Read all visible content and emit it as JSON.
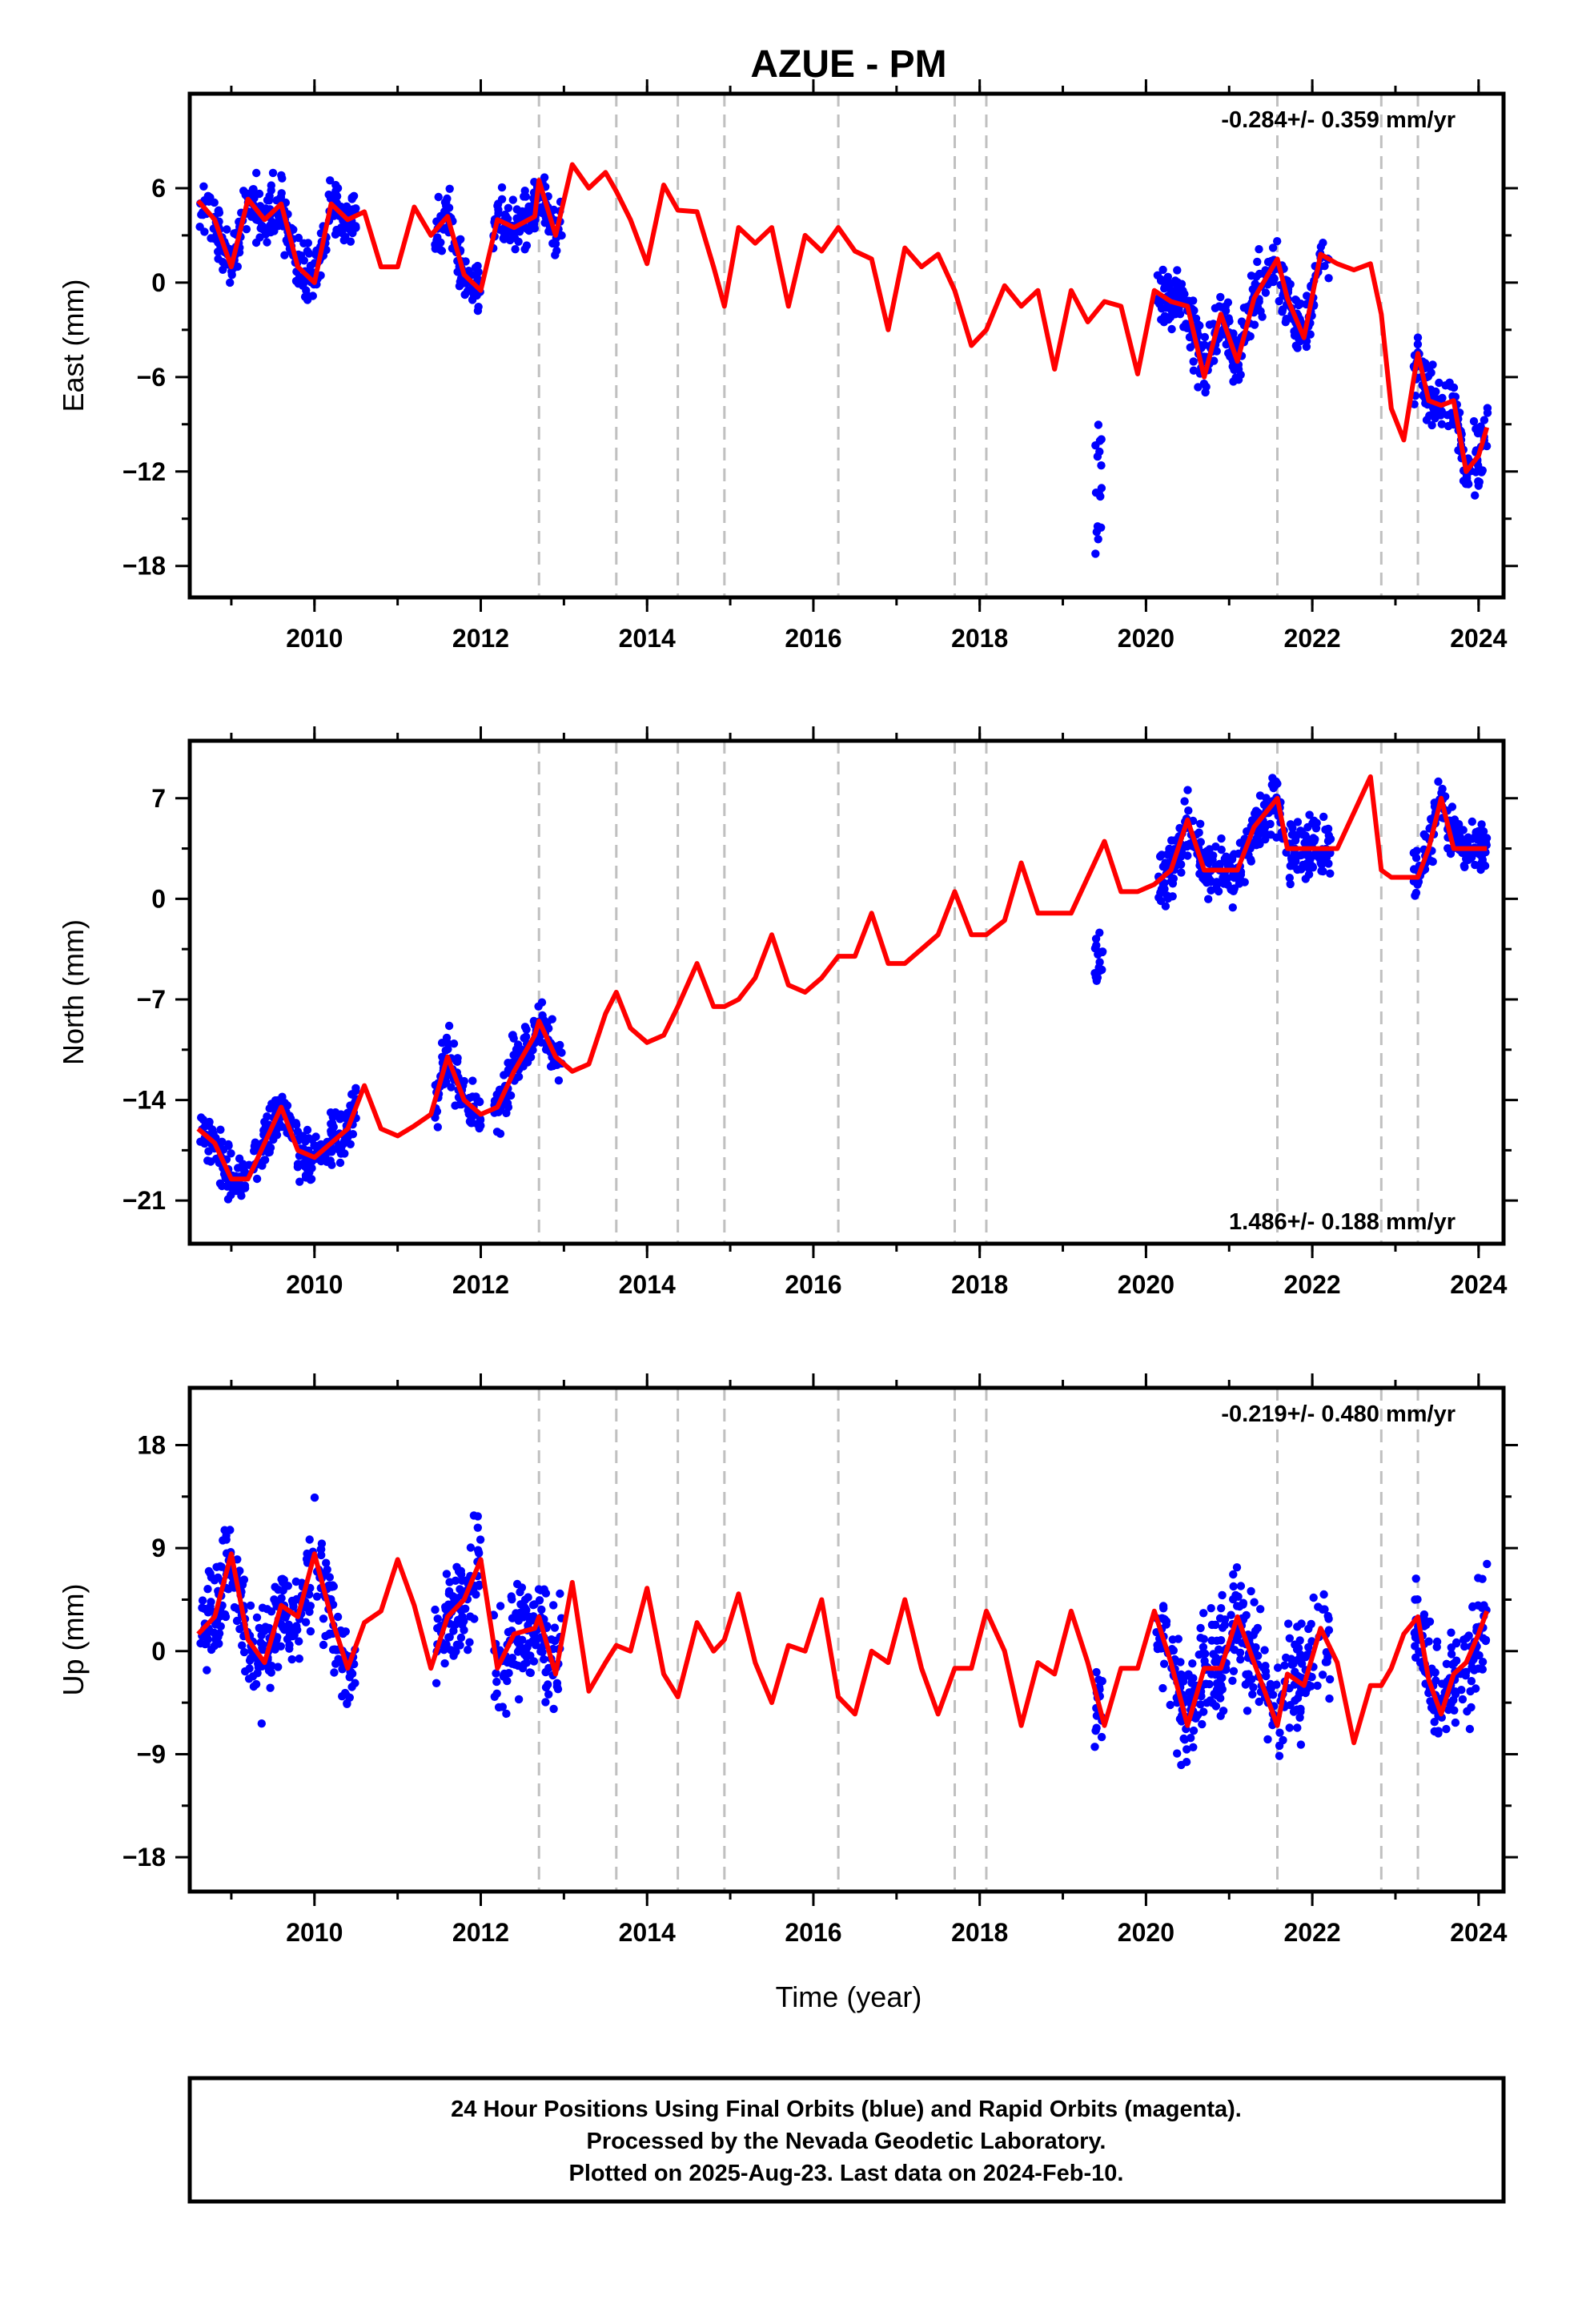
{
  "title": "AZUE - PM",
  "x_axis_label": "Time (year)",
  "colors": {
    "final_orbits": "#0000ff",
    "model": "#ff0000",
    "offset_lines": "#c0c0c0",
    "frame": "#000000"
  },
  "footer": {
    "line1": "24 Hour Positions Using Final Orbits (blue) and Rapid Orbits (magenta).",
    "line2": "Processed by the Nevada Geodetic Laboratory.",
    "line3": "Plotted on 2025-Aug-23. Last data on 2024-Feb-10."
  },
  "chart_data": [
    {
      "type": "scatter",
      "panel": "east",
      "ylabel": "East (mm)",
      "rate_label": "-0.284+/- 0.359 mm/yr",
      "rate_position": "top-right",
      "xlim": [
        2008.5,
        2024.3
      ],
      "ylim": [
        -20,
        12
      ],
      "x_ticks": [
        2010,
        2012,
        2014,
        2016,
        2018,
        2020,
        2022,
        2024
      ],
      "y_ticks": [
        6,
        0,
        -6,
        -12,
        -18
      ],
      "y_tick_labels": [
        "6",
        "0",
        "−6",
        "−12",
        "−18"
      ],
      "offset_lines": [
        2012.7,
        2013.63,
        2014.37,
        2014.93,
        2016.3,
        2017.7,
        2018.08,
        2021.58,
        2022.83,
        2023.27
      ],
      "model": {
        "x": [
          2008.6,
          2008.8,
          2009.0,
          2009.2,
          2009.4,
          2009.6,
          2009.8,
          2010.0,
          2010.2,
          2010.4,
          2010.6,
          2010.8,
          2011.0,
          2011.2,
          2011.4,
          2011.6,
          2011.8,
          2012.0,
          2012.2,
          2012.4,
          2012.65,
          2012.7,
          2012.9,
          2013.1,
          2013.3,
          2013.5,
          2013.63,
          2013.8,
          2014.0,
          2014.2,
          2014.37,
          2014.6,
          2014.8,
          2014.93,
          2015.1,
          2015.3,
          2015.5,
          2015.7,
          2015.9,
          2016.1,
          2016.3,
          2016.5,
          2016.7,
          2016.9,
          2017.1,
          2017.3,
          2017.5,
          2017.7,
          2017.9,
          2018.08,
          2018.3,
          2018.5,
          2018.7,
          2018.9,
          2019.1,
          2019.3,
          2019.5,
          2019.7,
          2019.9,
          2020.1,
          2020.3,
          2020.5,
          2020.7,
          2020.9,
          2021.1,
          2021.3,
          2021.58,
          2021.7,
          2021.9,
          2022.1,
          2022.3,
          2022.5,
          2022.7,
          2022.83,
          2022.95,
          2023.1,
          2023.27,
          2023.4,
          2023.55,
          2023.7,
          2023.85,
          2024.0,
          2024.1
        ],
        "y": [
          5.2,
          4,
          1,
          5.3,
          4,
          5,
          1,
          0,
          5,
          4,
          4.5,
          1,
          1,
          4.8,
          3,
          4.2,
          0.5,
          -0.5,
          4,
          3.5,
          4.2,
          6.5,
          3,
          7.5,
          6,
          7,
          5.8,
          4,
          1.2,
          6.2,
          4.6,
          4.5,
          1,
          -1.5,
          3.5,
          2.5,
          3.5,
          -1.5,
          3,
          2,
          3.5,
          2,
          1.5,
          -3,
          2.2,
          1,
          1.8,
          -0.5,
          -4,
          -3,
          -0.2,
          -1.5,
          -0.5,
          -5.5,
          -0.5,
          -2.5,
          -1.2,
          -1.5,
          -5.8,
          -0.5,
          -1.2,
          -1.5,
          -6,
          -2,
          -5,
          -1,
          1.5,
          -1,
          -3.5,
          1.8,
          1.2,
          0.8,
          1.2,
          -2,
          -8,
          -10,
          -4.5,
          -7.5,
          -7.8,
          -7.5,
          -12,
          -11,
          -9.2
        ]
      }
    },
    {
      "type": "scatter",
      "panel": "north",
      "ylabel": "North (mm)",
      "rate_label": "1.486+/- 0.188 mm/yr",
      "rate_position": "bottom-right",
      "xlim": [
        2008.5,
        2024.3
      ],
      "ylim": [
        -24,
        11
      ],
      "x_ticks": [
        2010,
        2012,
        2014,
        2016,
        2018,
        2020,
        2022,
        2024
      ],
      "y_ticks": [
        7,
        0,
        -7,
        -14,
        -21
      ],
      "y_tick_labels": [
        "7",
        "0",
        "−7",
        "−14",
        "−21"
      ],
      "offset_lines": [
        2012.7,
        2013.63,
        2014.37,
        2014.93,
        2016.3,
        2017.7,
        2018.08,
        2021.58,
        2022.83,
        2023.27
      ],
      "model": {
        "x": [
          2008.6,
          2008.8,
          2009.0,
          2009.2,
          2009.4,
          2009.6,
          2009.8,
          2010.0,
          2010.2,
          2010.4,
          2010.6,
          2010.8,
          2011.0,
          2011.2,
          2011.4,
          2011.6,
          2011.8,
          2012.0,
          2012.2,
          2012.4,
          2012.65,
          2012.7,
          2012.9,
          2013.1,
          2013.3,
          2013.5,
          2013.63,
          2013.8,
          2014.0,
          2014.2,
          2014.37,
          2014.6,
          2014.8,
          2014.93,
          2015.1,
          2015.3,
          2015.5,
          2015.7,
          2015.9,
          2016.1,
          2016.3,
          2016.5,
          2016.7,
          2016.9,
          2017.1,
          2017.3,
          2017.5,
          2017.7,
          2017.9,
          2018.08,
          2018.3,
          2018.5,
          2018.7,
          2018.9,
          2019.1,
          2019.3,
          2019.5,
          2019.7,
          2019.9,
          2020.1,
          2020.3,
          2020.5,
          2020.7,
          2020.9,
          2021.1,
          2021.3,
          2021.58,
          2021.7,
          2021.9,
          2022.1,
          2022.3,
          2022.5,
          2022.7,
          2022.83,
          2022.95,
          2023.1,
          2023.27,
          2023.4,
          2023.55,
          2023.7,
          2023.85,
          2024.0,
          2024.1
        ],
        "y": [
          -16,
          -17,
          -19.5,
          -19.5,
          -17,
          -14.5,
          -17.5,
          -18,
          -17,
          -16,
          -13,
          -16,
          -16.5,
          -15.8,
          -15,
          -11,
          -14,
          -15,
          -14.5,
          -12,
          -9.5,
          -8.5,
          -11,
          -12,
          -11.5,
          -8,
          -6.5,
          -9,
          -10,
          -9.5,
          -7.5,
          -4.5,
          -7.5,
          -7.5,
          -7,
          -5.5,
          -2.5,
          -6,
          -6.5,
          -5.5,
          -4,
          -4,
          -1,
          -4.5,
          -4.5,
          -3.5,
          -2.5,
          0.5,
          -2.5,
          -2.5,
          -1.5,
          2.5,
          -1,
          -1,
          -1,
          1.5,
          4,
          0.5,
          0.5,
          1,
          2,
          5.5,
          2,
          2,
          2,
          5,
          7,
          3.5,
          3.5,
          3.5,
          3.5,
          6,
          8.5,
          2,
          1.5,
          1.5,
          1.5,
          3.5,
          7,
          3.5,
          3.5,
          3.5,
          3.5
        ]
      }
    },
    {
      "type": "scatter",
      "panel": "up",
      "ylabel": "Up (mm)",
      "rate_label": "-0.219+/- 0.480 mm/yr",
      "rate_position": "top-right",
      "xlim": [
        2008.5,
        2024.3
      ],
      "ylim": [
        -21,
        23
      ],
      "x_ticks": [
        2010,
        2012,
        2014,
        2016,
        2018,
        2020,
        2022,
        2024
      ],
      "y_ticks": [
        18,
        9,
        0,
        -9,
        -18
      ],
      "y_tick_labels": [
        "18",
        "9",
        "0",
        "−9",
        "−18"
      ],
      "offset_lines": [
        2012.7,
        2013.63,
        2014.37,
        2014.93,
        2016.3,
        2017.7,
        2018.08,
        2021.58,
        2022.83,
        2023.27
      ],
      "model": {
        "x": [
          2008.6,
          2008.8,
          2009.0,
          2009.2,
          2009.4,
          2009.6,
          2009.8,
          2010.0,
          2010.2,
          2010.4,
          2010.6,
          2010.8,
          2011.0,
          2011.2,
          2011.4,
          2011.6,
          2011.8,
          2012.0,
          2012.2,
          2012.4,
          2012.65,
          2012.7,
          2012.9,
          2013.1,
          2013.3,
          2013.5,
          2013.63,
          2013.8,
          2014.0,
          2014.2,
          2014.37,
          2014.6,
          2014.8,
          2014.93,
          2015.1,
          2015.3,
          2015.5,
          2015.7,
          2015.9,
          2016.1,
          2016.3,
          2016.5,
          2016.7,
          2016.9,
          2017.1,
          2017.3,
          2017.5,
          2017.7,
          2017.9,
          2018.08,
          2018.3,
          2018.5,
          2018.7,
          2018.9,
          2019.1,
          2019.3,
          2019.5,
          2019.7,
          2019.9,
          2020.1,
          2020.3,
          2020.5,
          2020.7,
          2020.9,
          2021.1,
          2021.3,
          2021.58,
          2021.7,
          2021.9,
          2022.1,
          2022.3,
          2022.5,
          2022.7,
          2022.83,
          2022.95,
          2023.1,
          2023.27,
          2023.4,
          2023.55,
          2023.7,
          2023.85,
          2024.0,
          2024.1
        ],
        "y": [
          1.5,
          3,
          8.5,
          1,
          -1,
          4,
          3,
          8.5,
          3,
          -1.5,
          2.5,
          3.5,
          8,
          4,
          -1.5,
          3,
          4.5,
          8,
          -1.5,
          1.5,
          2,
          3,
          -2,
          6,
          -3.5,
          -1,
          0.5,
          0,
          5.5,
          -2,
          -4,
          2.5,
          0,
          1,
          5,
          -1,
          -4.5,
          0.5,
          0,
          4.5,
          -4,
          -5.5,
          0,
          -1,
          4.5,
          -1.5,
          -5.5,
          -1.5,
          -1.5,
          3.5,
          0,
          -6.5,
          -1,
          -2,
          3.5,
          -1,
          -6.5,
          -1.5,
          -1.5,
          3.5,
          -1,
          -6.5,
          -1.5,
          -1.5,
          3,
          -1,
          -6.5,
          -2,
          -3,
          2,
          -1,
          -8,
          -3,
          -3,
          -1.5,
          1.5,
          3,
          -2.5,
          -5.5,
          -2,
          -1,
          1.5,
          3.5
        ]
      }
    }
  ]
}
